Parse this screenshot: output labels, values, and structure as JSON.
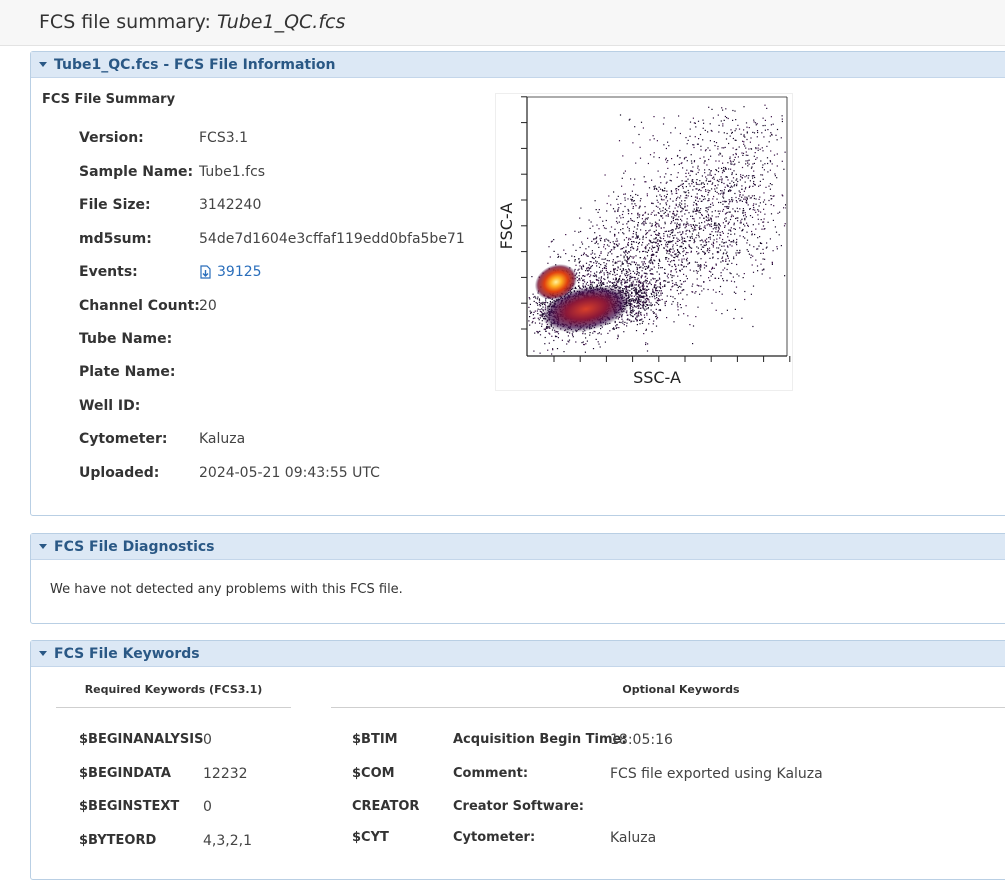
{
  "header": {
    "title_prefix": "FCS file summary:",
    "file_name": "Tube1_QC.fcs"
  },
  "info_panel": {
    "title": "Tube1_QC.fcs - FCS File Information",
    "summary_heading": "FCS File Summary",
    "rows": [
      {
        "label": "Version:",
        "value": "FCS3.1"
      },
      {
        "label": "Sample Name:",
        "value": "Tube1.fcs"
      },
      {
        "label": "File Size:",
        "value": "3142240"
      },
      {
        "label": "md5sum:",
        "value": "54de7d1604e3cffaf119edd0bfa5be71"
      },
      {
        "label": "Events:",
        "value": "39125"
      },
      {
        "label": "Channel Count:",
        "value": "20"
      },
      {
        "label": "Tube Name:",
        "value": ""
      },
      {
        "label": "Plate Name:",
        "value": ""
      },
      {
        "label": "Well ID:",
        "value": ""
      },
      {
        "label": "Cytometer:",
        "value": "Kaluza"
      },
      {
        "label": "Uploaded:",
        "value": "2024-05-21 09:43:55 UTC"
      }
    ],
    "plot": {
      "xlabel": "SSC-A",
      "ylabel": "FSC-A"
    }
  },
  "diagnostics_panel": {
    "title": "FCS File Diagnostics",
    "message": "We have not detected any problems with this FCS file."
  },
  "keywords_panel": {
    "title": "FCS File Keywords",
    "required_heading": "Required Keywords (FCS3.1)",
    "optional_heading": "Optional Keywords",
    "required": [
      {
        "key": "$BEGINANALYSIS",
        "value": "0"
      },
      {
        "key": "$BEGINDATA",
        "value": "12232"
      },
      {
        "key": "$BEGINSTEXT",
        "value": "0"
      },
      {
        "key": "$BYTEORD",
        "value": "4,3,2,1"
      }
    ],
    "optional": [
      {
        "key": "$BTIM",
        "desc": "Acquisition Begin Time:",
        "value": "18:05:16"
      },
      {
        "key": "$COM",
        "desc": "Comment:",
        "value": "FCS file exported using Kaluza"
      },
      {
        "key": "CREATOR",
        "desc": "Creator Software:",
        "value": ""
      },
      {
        "key": "$CYT",
        "desc": "Cytometer:",
        "value": "Kaluza"
      }
    ]
  },
  "colors": {
    "panel_header_bg": "#dce8f5",
    "panel_title": "#2a5885",
    "link": "#2a6ebb"
  },
  "icons": {
    "collapse": "caret-down-icon",
    "download": "download-icon"
  }
}
